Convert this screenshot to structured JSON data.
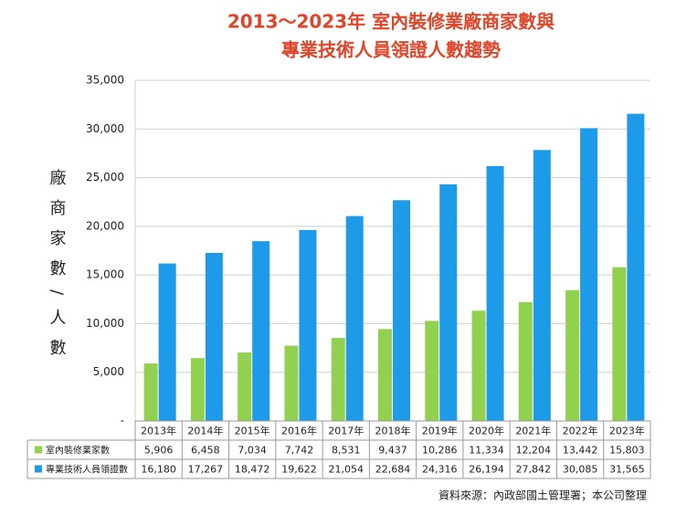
{
  "chart_data": {
    "type": "bar",
    "title": [
      "2013～2023年 室內裝修業廠商家數與",
      "專業技術人員領證人數趨勢"
    ],
    "y_label": "廠商家數/人數",
    "source": "資料來源：內政部國土管理署；本公司整理",
    "categories": [
      "2013年",
      "2014年",
      "2015年",
      "2016年",
      "2017年",
      "2018年",
      "2019年",
      "2020年",
      "2021年",
      "2022年",
      "2023年"
    ],
    "series": [
      {
        "name": "室內裝修業家數",
        "color": "#92d050",
        "values": [
          5906,
          6458,
          7034,
          7742,
          8531,
          9437,
          10286,
          11334,
          12204,
          13442,
          15803
        ],
        "value_labels": [
          "5,906",
          "6,458",
          "7,034",
          "7,742",
          "8,531",
          "9,437",
          "10,286",
          "11,334",
          "12,204",
          "13,442",
          "15,803"
        ]
      },
      {
        "name": "專業技術人員領證數",
        "color": "#1e9be8",
        "values": [
          16180,
          17267,
          18472,
          19622,
          21054,
          22684,
          24316,
          26194,
          27842,
          30085,
          31565
        ],
        "value_labels": [
          "16,180",
          "17,267",
          "18,472",
          "19,622",
          "21,054",
          "22,684",
          "24,316",
          "26,194",
          "27,842",
          "30,085",
          "31,565"
        ]
      }
    ],
    "ylim": [
      0,
      35000
    ],
    "yticks": [
      {
        "value": 0,
        "label": "-"
      },
      {
        "value": 5000,
        "label": "5,000"
      },
      {
        "value": 10000,
        "label": "10,000"
      },
      {
        "value": 15000,
        "label": "15,000"
      },
      {
        "value": 20000,
        "label": "20,000"
      },
      {
        "value": 25000,
        "label": "25,000"
      },
      {
        "value": 30000,
        "label": "30,000"
      },
      {
        "value": 35000,
        "label": "35,000"
      }
    ],
    "grid": true
  }
}
